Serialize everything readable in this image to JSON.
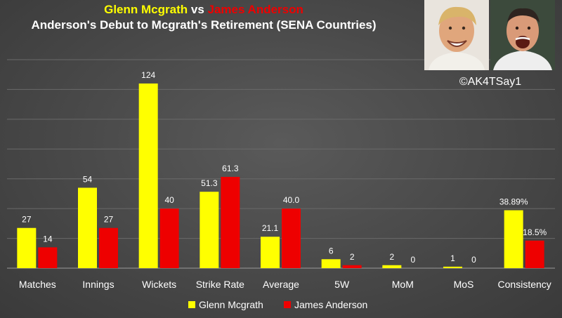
{
  "header": {
    "player1": "Glenn Mcgrath",
    "versus": "vs",
    "player2": "James Anderson",
    "subtitle": "Anderson's Debut to Mcgrath's Retirement (SENA Countries)",
    "credit": "©AK4TSay1"
  },
  "colors": {
    "player1": "#ffff00",
    "player2": "#ee0000",
    "background": "#484848",
    "text": "#ffffff"
  },
  "chart_data": {
    "type": "bar",
    "categories": [
      "Matches",
      "Innings",
      "Wickets",
      "Strike Rate",
      "Average",
      "5W",
      "MoM",
      "MoS",
      "Consistency"
    ],
    "series": [
      {
        "name": "Glenn Mcgrath",
        "values": [
          27,
          54,
          124,
          51.3,
          21.1,
          6,
          2,
          1,
          38.89
        ],
        "labels": [
          "27",
          "54",
          "124",
          "51.3",
          "21.1",
          "6",
          "2",
          "1",
          "38.89%"
        ]
      },
      {
        "name": "James Anderson",
        "values": [
          14,
          27,
          40,
          61.3,
          40.0,
          2,
          0,
          0,
          18.5
        ],
        "labels": [
          "14",
          "27",
          "40",
          "61.3",
          "40.0",
          "2",
          "0",
          "0",
          "18.5%"
        ]
      }
    ],
    "legend_position": "bottom",
    "gridlines": true,
    "ylim": [
      0,
      140
    ]
  }
}
